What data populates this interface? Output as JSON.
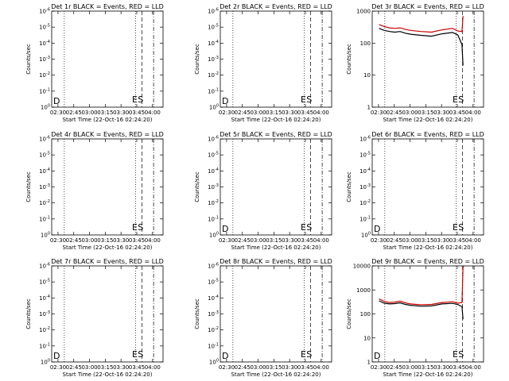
{
  "figure": {
    "background": "#ffffff",
    "panel_titles": [
      "Det 1r BLACK = Events, RED = LLD",
      "Det 2r BLACK = Events, RED = LLD",
      "Det 3r BLACK = Events, RED = LLD",
      "Det 4r BLACK = Events, RED = LLD",
      "Det 5r BLACK = Events, RED = LLD",
      "Det 6r BLACK = Events, RED = LLD",
      "Det 7r BLACK = Events, RED = LLD",
      "Det 8r BLACK = Events, RED = LLD",
      "Det 9r BLACK = Events, RED = LLD"
    ],
    "x_label": "Start Time (22-Oct-16 02:24:20)",
    "y_label": "Counts/sec",
    "x_ticks": [
      "02:30",
      "02:45",
      "03:00",
      "03:15",
      "03:30",
      "03:45",
      "04:00"
    ],
    "colors": {
      "events": "#000000",
      "lld": "#cc0000"
    }
  },
  "chart_data": [
    {
      "type": "line",
      "title": "Det 1r BLACK = Events, RED = LLD",
      "xlabel": "Start Time (22-Oct-16 02:24:20)",
      "ylabel": "Counts/sec",
      "x_ticks": [
        "02:30",
        "02:45",
        "03:00",
        "03:15",
        "03:30",
        "03:45",
        "04:00"
      ],
      "y_scale": "log",
      "y_ticks": [
        "10^0",
        "10^-1",
        "10^-2",
        "10^-3",
        "10^-4",
        "10^-5",
        "10^-6"
      ],
      "ylim": [
        1,
        1e-06
      ],
      "markers": [
        "D",
        "E",
        "S"
      ],
      "series": []
    },
    {
      "type": "line",
      "title": "Det 2r BLACK = Events, RED = LLD",
      "xlabel": "Start Time (22-Oct-16 02:24:20)",
      "ylabel": "Counts/sec",
      "x_ticks": [
        "02:30",
        "02:45",
        "03:00",
        "03:15",
        "03:30",
        "03:45",
        "04:00"
      ],
      "y_scale": "log",
      "y_ticks": [
        "10^0",
        "10^-1",
        "10^-2",
        "10^-3",
        "10^-4",
        "10^-5",
        "10^-6"
      ],
      "ylim": [
        1,
        1e-06
      ],
      "markers": [
        "D",
        "E",
        "S"
      ],
      "series": []
    },
    {
      "type": "line",
      "title": "Det 3r BLACK = Events, RED = LLD",
      "xlabel": "Start Time (22-Oct-16 02:24:20)",
      "ylabel": "Counts/sec",
      "x_ticks": [
        "02:30",
        "02:45",
        "03:00",
        "03:15",
        "03:30",
        "03:45",
        "04:00"
      ],
      "y_scale": "log",
      "y_ticks": [
        "1",
        "10",
        "100",
        "1000"
      ],
      "ylim": [
        1,
        1000
      ],
      "markers": [
        "E",
        "S"
      ],
      "series": [
        {
          "color": "#cc0000",
          "x_min": [
            0,
            5,
            10,
            15,
            20,
            25,
            30,
            40,
            50,
            60,
            70,
            75,
            79,
            80
          ],
          "y": [
            380,
            330,
            300,
            290,
            300,
            270,
            250,
            230,
            220,
            260,
            290,
            240,
            230,
            700
          ]
        },
        {
          "color": "#000000",
          "x_min": [
            0,
            5,
            10,
            15,
            20,
            25,
            30,
            40,
            50,
            60,
            70,
            75,
            79,
            80
          ],
          "y": [
            290,
            250,
            230,
            220,
            230,
            205,
            190,
            175,
            165,
            195,
            215,
            180,
            90,
            20
          ]
        }
      ]
    },
    {
      "type": "line",
      "title": "Det 4r BLACK = Events, RED = LLD",
      "xlabel": "Start Time (22-Oct-16 02:24:20)",
      "ylabel": "Counts/sec",
      "x_ticks": [
        "02:30",
        "02:45",
        "03:00",
        "03:15",
        "03:30",
        "03:45",
        "04:00"
      ],
      "y_scale": "log",
      "y_ticks": [
        "10^0",
        "10^-1",
        "10^-2",
        "10^-3",
        "10^-4",
        "10^-5",
        "10^-6"
      ],
      "ylim": [
        1,
        1e-06
      ],
      "markers": [
        "E",
        "S"
      ],
      "series": []
    },
    {
      "type": "line",
      "title": "Det 5r BLACK = Events, RED = LLD",
      "xlabel": "Start Time (22-Oct-16 02:24:20)",
      "ylabel": "Counts/sec",
      "x_ticks": [
        "02:30",
        "02:45",
        "03:00",
        "03:15",
        "03:30",
        "03:45",
        "04:00"
      ],
      "y_scale": "log",
      "y_ticks": [
        "10^0",
        "10^-1",
        "10^-2",
        "10^-3",
        "10^-4",
        "10^-5",
        "10^-6"
      ],
      "ylim": [
        1,
        1e-06
      ],
      "markers": [
        "D",
        "E",
        "S"
      ],
      "series": []
    },
    {
      "type": "line",
      "title": "Det 6r BLACK = Events, RED = LLD",
      "xlabel": "Start Time (22-Oct-16 02:24:20)",
      "ylabel": "Counts/sec",
      "x_ticks": [
        "02:30",
        "02:45",
        "03:00",
        "03:15",
        "03:30",
        "03:45",
        "04:00"
      ],
      "y_scale": "log",
      "y_ticks": [
        "10^0",
        "10^-1",
        "10^-2",
        "10^-3",
        "10^-4",
        "10^-5",
        "10^-6"
      ],
      "ylim": [
        1,
        1e-06
      ],
      "markers": [
        "D",
        "E",
        "S"
      ],
      "series": []
    },
    {
      "type": "line",
      "title": "Det 7r BLACK = Events, RED = LLD",
      "xlabel": "Start Time (22-Oct-16 02:24:20)",
      "ylabel": "Counts/sec",
      "x_ticks": [
        "02:30",
        "02:45",
        "03:00",
        "03:15",
        "03:30",
        "03:45",
        "04:00"
      ],
      "y_scale": "log",
      "y_ticks": [
        "10^0",
        "10^-1",
        "10^-2",
        "10^-3",
        "10^-4",
        "10^-5",
        "10^-6"
      ],
      "ylim": [
        1,
        1e-06
      ],
      "markers": [
        "D",
        "E",
        "S"
      ],
      "series": []
    },
    {
      "type": "line",
      "title": "Det 8r BLACK = Events, RED = LLD",
      "xlabel": "Start Time (22-Oct-16 02:24:20)",
      "ylabel": "Counts/sec",
      "x_ticks": [
        "02:30",
        "02:45",
        "03:00",
        "03:15",
        "03:30",
        "03:45",
        "04:00"
      ],
      "y_scale": "log",
      "y_ticks": [
        "10^0",
        "10^-1",
        "10^-2",
        "10^-3",
        "10^-4",
        "10^-5",
        "10^-6"
      ],
      "ylim": [
        1,
        1e-06
      ],
      "markers": [
        "D",
        "E",
        "S"
      ],
      "series": []
    },
    {
      "type": "line",
      "title": "Det 9r BLACK = Events, RED = LLD",
      "xlabel": "Start Time (22-Oct-16 02:24:20)",
      "ylabel": "Counts/sec",
      "x_ticks": [
        "02:30",
        "02:45",
        "03:00",
        "03:15",
        "03:30",
        "03:45",
        "04:00"
      ],
      "y_scale": "log",
      "y_ticks": [
        "1",
        "10",
        "100",
        "1000",
        "10000"
      ],
      "ylim": [
        1,
        10000
      ],
      "markers": [
        "D",
        "E",
        "S"
      ],
      "series": [
        {
          "color": "#cc0000",
          "x_min": [
            0,
            5,
            10,
            15,
            20,
            25,
            30,
            40,
            50,
            60,
            70,
            75,
            79,
            80,
            81
          ],
          "y": [
            420,
            330,
            300,
            310,
            340,
            290,
            260,
            240,
            250,
            300,
            320,
            280,
            300,
            9000,
            10000
          ]
        },
        {
          "color": "#000000",
          "x_min": [
            0,
            5,
            10,
            15,
            20,
            25,
            30,
            40,
            50,
            60,
            70,
            75,
            79,
            80
          ],
          "y": [
            350,
            280,
            260,
            270,
            290,
            250,
            230,
            210,
            215,
            260,
            275,
            245,
            200,
            60
          ]
        }
      ]
    }
  ]
}
